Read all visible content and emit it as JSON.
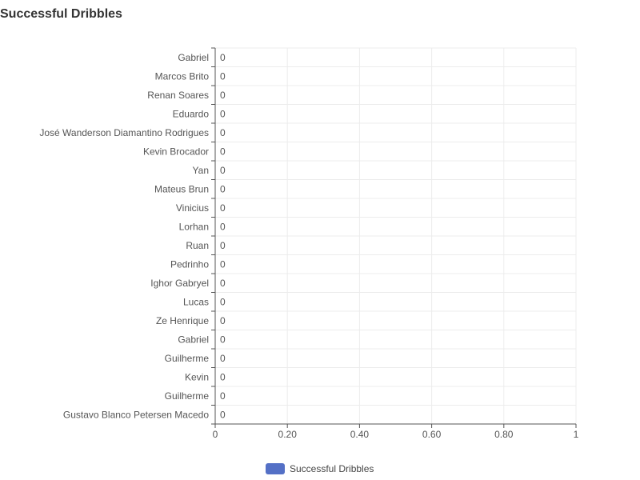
{
  "title": "Successful Dribbles",
  "colors": {
    "series": "#5470c6",
    "grid": "#ececec",
    "axis": "#555555"
  },
  "chart_data": {
    "type": "bar",
    "orientation": "horizontal",
    "title": "Successful Dribbles",
    "categories": [
      "Gabriel",
      "Marcos Brito",
      "Renan Soares",
      "Eduardo",
      "José Wanderson Diamantino Rodrigues",
      "Kevin Brocador",
      "Yan",
      "Mateus Brun",
      "Vinicius",
      "Lorhan",
      "Ruan",
      "Pedrinho",
      "Ighor Gabryel",
      "Lucas",
      "Ze Henrique",
      "Gabriel",
      "Guilherme",
      "Kevin",
      "Guilherme",
      "Gustavo Blanco Petersen Macedo"
    ],
    "series": [
      {
        "name": "Successful Dribbles",
        "values": [
          0,
          0,
          0,
          0,
          0,
          0,
          0,
          0,
          0,
          0,
          0,
          0,
          0,
          0,
          0,
          0,
          0,
          0,
          0,
          0
        ]
      }
    ],
    "xlim": [
      0,
      1
    ],
    "x_ticks": [
      0,
      0.2,
      0.4,
      0.6,
      0.8,
      1
    ],
    "x_tick_labels": [
      "0",
      "0.20",
      "0.40",
      "0.60",
      "0.80",
      "1"
    ],
    "grid": true,
    "data_labels": true,
    "legend_position": "bottom-center"
  }
}
